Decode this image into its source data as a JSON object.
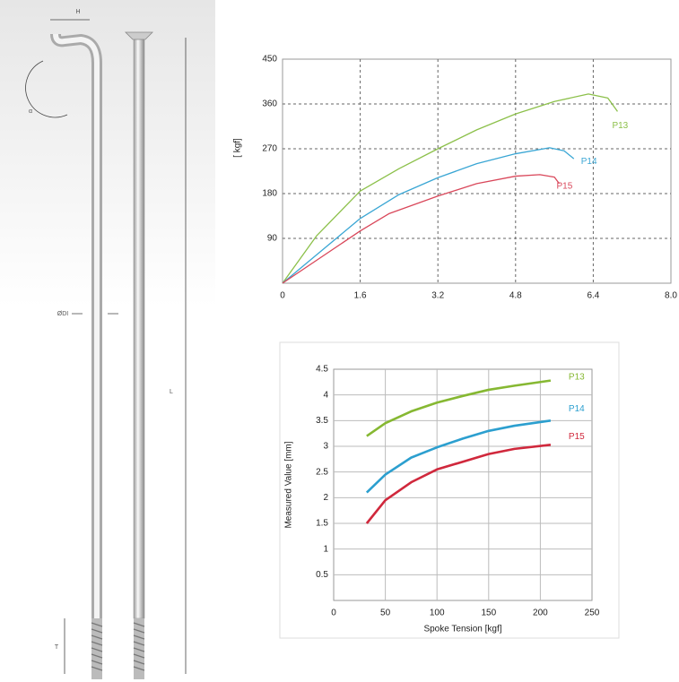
{
  "diagram": {
    "labels": [
      "H",
      "α",
      "ØDI",
      "L",
      "T"
    ]
  },
  "chart_data": [
    {
      "type": "line",
      "ylabel": "[ kgf]",
      "xlim": [
        0,
        8
      ],
      "xticks": [
        0,
        1.6,
        3.2,
        4.8,
        6.4,
        {
          "value": 8,
          "label": "8.0"
        }
      ],
      "ylim": [
        0,
        450
      ],
      "yticks": [
        90,
        180,
        270,
        360,
        450
      ],
      "grid": "dashed",
      "series": [
        {
          "name": "P13",
          "color": "#8cc04a",
          "x": [
            0,
            0.7,
            1.6,
            2.4,
            3.2,
            4.0,
            4.8,
            5.6,
            6.3,
            6.7,
            6.9
          ],
          "values": [
            0,
            95,
            185,
            230,
            270,
            308,
            340,
            365,
            380,
            372,
            345
          ]
        },
        {
          "name": "P14",
          "color": "#3aa6d4",
          "x": [
            0,
            0.8,
            1.6,
            2.4,
            3.2,
            4.0,
            4.8,
            5.5,
            5.8,
            6.0
          ],
          "values": [
            0,
            65,
            130,
            178,
            212,
            240,
            260,
            272,
            266,
            250
          ]
        },
        {
          "name": "P15",
          "color": "#d9475a",
          "x": [
            0,
            1.6,
            2.2,
            3.2,
            4.0,
            4.8,
            5.3,
            5.6,
            5.7
          ],
          "values": [
            0,
            105,
            140,
            175,
            200,
            215,
            218,
            213,
            200
          ]
        }
      ]
    },
    {
      "type": "line",
      "xlabel": "Spoke Tension [kgf]",
      "ylabel": "Measured Value [mm]",
      "xlim": [
        0,
        250
      ],
      "xticks": [
        0,
        50,
        100,
        150,
        200,
        250
      ],
      "ylim": [
        0,
        4.5
      ],
      "yticks": [
        0.5,
        1,
        1.5,
        2,
        2.5,
        3,
        3.5,
        4,
        4.5
      ],
      "grid": "solid",
      "series": [
        {
          "name": "P13",
          "color": "#86b832",
          "x": [
            32,
            50,
            75,
            100,
            125,
            150,
            175,
            210
          ],
          "values": [
            3.2,
            3.45,
            3.68,
            3.85,
            3.98,
            4.1,
            4.18,
            4.28
          ]
        },
        {
          "name": "P14",
          "color": "#2c9fcf",
          "x": [
            32,
            50,
            75,
            100,
            125,
            150,
            175,
            210
          ],
          "values": [
            2.1,
            2.45,
            2.78,
            2.98,
            3.15,
            3.3,
            3.4,
            3.5
          ]
        },
        {
          "name": "P15",
          "color": "#d0283c",
          "x": [
            32,
            50,
            75,
            100,
            125,
            150,
            175,
            210
          ],
          "values": [
            1.5,
            1.95,
            2.3,
            2.55,
            2.7,
            2.85,
            2.95,
            3.03
          ]
        }
      ]
    }
  ]
}
